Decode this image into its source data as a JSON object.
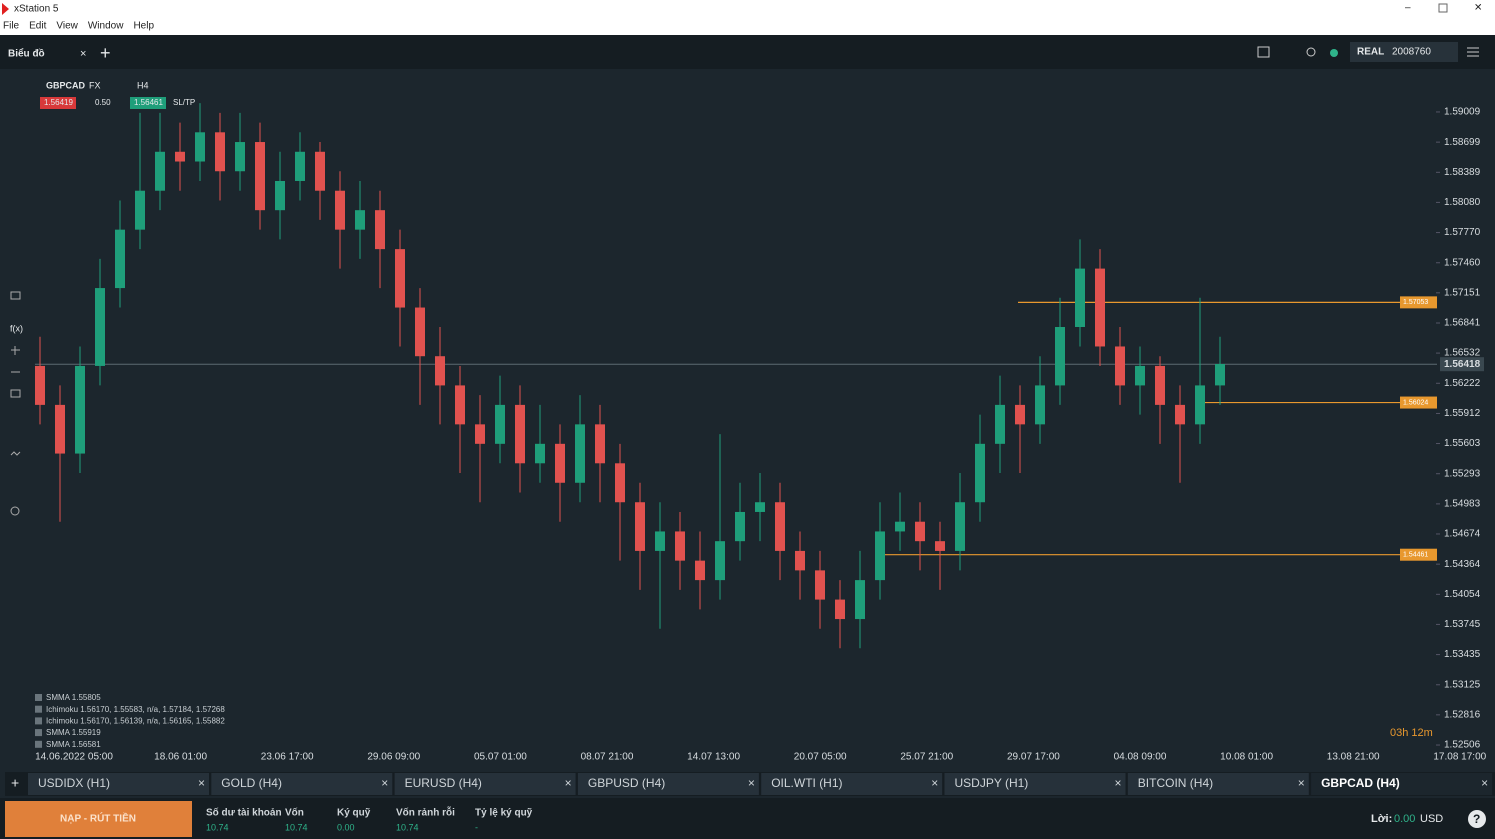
{
  "window": {
    "title": "xStation 5",
    "menu": [
      "File",
      "Edit",
      "View",
      "Window",
      "Help"
    ]
  },
  "toolbar": {
    "workspace": "Biểu đồ",
    "account_type": "REAL",
    "account_id": "2008760"
  },
  "chart_header": {
    "symbol": "GBPCAD",
    "market": "FX",
    "timeframe": "H4",
    "sell": "1.56419",
    "volume": "0.50",
    "buy": "1.56461",
    "sltp": "SL/TP"
  },
  "chart": {
    "type": "candlestick",
    "ylim": [
      1.5227,
      1.5944
    ],
    "yticks": [
      1.59009,
      1.58699,
      1.58389,
      {
        "value": 1.5808,
        "label": "1.58080"
      },
      {
        "value": 1.5777,
        "label": "1.57770"
      },
      {
        "value": 1.5746,
        "label": "1.57460"
      },
      1.57151,
      1.56841,
      1.56532,
      1.56222,
      1.55912,
      1.55603,
      1.55293,
      1.54983,
      1.54674,
      1.54364,
      1.54054,
      1.53745,
      1.53435,
      1.53125,
      1.52816,
      1.52506
    ],
    "x_labels": [
      "14.06.2022 05:00",
      "18.06 01:00",
      "23.06 17:00",
      "29.06 09:00",
      "05.07 01:00",
      "08.07 21:00",
      "14.07 13:00",
      "20.07 05:00",
      "25.07 21:00",
      "29.07 17:00",
      "04.08 09:00",
      "10.08 01:00",
      "13.08 21:00",
      "17.08 17:00"
    ],
    "up_color": "#1f9e7a",
    "down_color": "#e0524f",
    "ohlc": [
      [
        1.564,
        1.567,
        1.558,
        1.56
      ],
      [
        1.56,
        1.562,
        1.548,
        1.555
      ],
      [
        1.555,
        1.566,
        1.553,
        1.564
      ],
      [
        1.564,
        1.575,
        1.562,
        1.572
      ],
      [
        1.572,
        1.581,
        1.57,
        1.578
      ],
      [
        1.578,
        1.59,
        1.576,
        1.582
      ],
      [
        1.582,
        1.59,
        1.58,
        1.586
      ],
      [
        1.586,
        1.589,
        1.582,
        1.585
      ],
      [
        1.585,
        1.591,
        1.583,
        1.588
      ],
      [
        1.588,
        1.59,
        1.581,
        1.584
      ],
      [
        1.584,
        1.59,
        1.582,
        1.587
      ],
      [
        1.587,
        1.589,
        1.578,
        1.58
      ],
      [
        1.58,
        1.586,
        1.577,
        1.583
      ],
      [
        1.583,
        1.588,
        1.581,
        1.586
      ],
      [
        1.586,
        1.587,
        1.579,
        1.582
      ],
      [
        1.582,
        1.584,
        1.574,
        1.578
      ],
      [
        1.578,
        1.583,
        1.575,
        1.58
      ],
      [
        1.58,
        1.582,
        1.572,
        1.576
      ],
      [
        1.576,
        1.578,
        1.566,
        1.57
      ],
      [
        1.57,
        1.572,
        1.56,
        1.565
      ],
      [
        1.565,
        1.568,
        1.558,
        1.562
      ],
      [
        1.562,
        1.564,
        1.553,
        1.558
      ],
      [
        1.558,
        1.561,
        1.55,
        1.556
      ],
      [
        1.556,
        1.563,
        1.554,
        1.56
      ],
      [
        1.56,
        1.562,
        1.551,
        1.554
      ],
      [
        1.554,
        1.56,
        1.552,
        1.556
      ],
      [
        1.556,
        1.558,
        1.548,
        1.552
      ],
      [
        1.552,
        1.561,
        1.55,
        1.558
      ],
      [
        1.558,
        1.56,
        1.55,
        1.554
      ],
      [
        1.554,
        1.556,
        1.544,
        1.55
      ],
      [
        1.55,
        1.552,
        1.541,
        1.545
      ],
      [
        1.545,
        1.55,
        1.537,
        1.547
      ],
      [
        1.547,
        1.549,
        1.541,
        1.544
      ],
      [
        1.544,
        1.547,
        1.539,
        1.542
      ],
      [
        1.542,
        1.557,
        1.54,
        1.546
      ],
      [
        1.546,
        1.552,
        1.544,
        1.549
      ],
      [
        1.549,
        1.553,
        1.546,
        1.55
      ],
      [
        1.55,
        1.552,
        1.542,
        1.545
      ],
      [
        1.545,
        1.547,
        1.54,
        1.543
      ],
      [
        1.543,
        1.545,
        1.537,
        1.54
      ],
      [
        1.54,
        1.542,
        1.535,
        1.538
      ],
      [
        1.538,
        1.545,
        1.535,
        1.542
      ],
      [
        1.542,
        1.55,
        1.54,
        1.547
      ],
      [
        1.547,
        1.551,
        1.545,
        1.548
      ],
      [
        1.548,
        1.55,
        1.543,
        1.546
      ],
      [
        1.546,
        1.548,
        1.541,
        1.545
      ],
      [
        1.545,
        1.553,
        1.543,
        1.55
      ],
      [
        1.55,
        1.559,
        1.548,
        1.556
      ],
      [
        1.556,
        1.563,
        1.553,
        1.56
      ],
      [
        1.56,
        1.562,
        1.553,
        1.558
      ],
      [
        1.558,
        1.565,
        1.556,
        1.562
      ],
      [
        1.562,
        1.571,
        1.56,
        1.568
      ],
      [
        1.568,
        1.577,
        1.566,
        1.574
      ],
      [
        1.574,
        1.576,
        1.564,
        1.566
      ],
      [
        1.566,
        1.568,
        1.56,
        1.562
      ],
      [
        1.562,
        1.566,
        1.559,
        1.564
      ],
      [
        1.564,
        1.565,
        1.556,
        1.56
      ],
      [
        1.56,
        1.562,
        1.552,
        1.558
      ],
      [
        1.558,
        1.571,
        1.556,
        1.562
      ],
      [
        1.562,
        1.567,
        1.56,
        1.5642
      ]
    ],
    "price_lines": [
      {
        "value": 1.57053,
        "color": "#e8982e"
      },
      {
        "value": 1.56024,
        "color": "#e8982e"
      },
      {
        "value": 1.54461,
        "color": "#e8982e"
      }
    ],
    "current_price": 1.56418,
    "countdown": "03h 12m",
    "legend": [
      "SMMA 1.55805",
      "Ichimoku 1.56170, 1.55583, n/a, 1.57184, 1.57268",
      "Ichimoku 1.56170, 1.56139, n/a, 1.56165, 1.55882",
      "SMMA 1.55919",
      "SMMA 1.56581"
    ]
  },
  "tabs": [
    "USDIDX (H1)",
    "GOLD (H4)",
    "EURUSD (H4)",
    "GBPUSD (H4)",
    "OIL.WTI (H1)",
    "USDJPY (H1)",
    "BITCOIN (H4)",
    "GBPCAD (H4)"
  ],
  "footer": {
    "deposit_button": "NẠP - RÚT TIỀN",
    "stats": [
      {
        "label": "Số dư tài khoản",
        "value": "10.74"
      },
      {
        "label": "Vốn",
        "value": "10.74"
      },
      {
        "label": "Ký quỹ",
        "value": "0.00"
      },
      {
        "label": "Vốn rảnh rỗi",
        "value": "10.74"
      },
      {
        "label": "Tỷ lệ ký quỹ",
        "value": "-"
      }
    ],
    "profit_label": "Lời:",
    "profit_value": "0.00",
    "currency": "USD"
  }
}
